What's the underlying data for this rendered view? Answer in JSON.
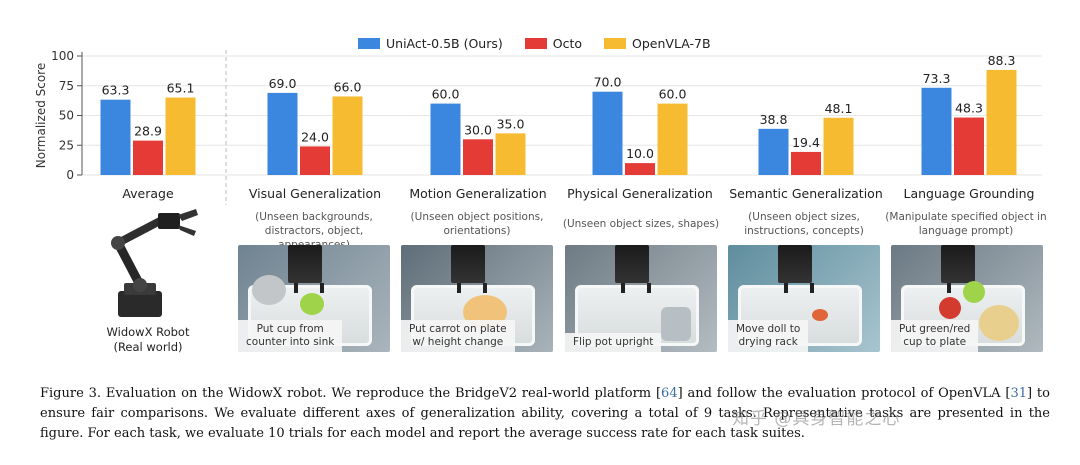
{
  "chart_data": {
    "type": "bar",
    "ylabel": "Normalized Score",
    "ylim": [
      0,
      100
    ],
    "yticks": [
      0,
      25,
      50,
      75,
      100
    ],
    "grid": true,
    "legend": "top-center",
    "categories": [
      "Average",
      "Visual Generalization",
      "Motion Generalization",
      "Physical Generalization",
      "Semantic Generalization",
      "Language Grounding"
    ],
    "series": [
      {
        "name": "UniAct-0.5B (Ours)",
        "color": "#3b87e0",
        "values": [
          63.3,
          69.0,
          60.0,
          70.0,
          38.8,
          73.3
        ]
      },
      {
        "name": "Octo",
        "color": "#e53b36",
        "values": [
          28.9,
          24.0,
          30.0,
          10.0,
          19.4,
          48.3
        ]
      },
      {
        "name": "OpenVLA-7B",
        "color": "#f7bb31",
        "values": [
          65.1,
          66.0,
          35.0,
          60.0,
          48.1,
          88.3
        ]
      }
    ],
    "subtitles": [
      "",
      "(Unseen backgrounds, distractors, object, appearances)",
      "(Unseen object positions, orientations)",
      "(Unseen object sizes,  shapes)",
      "(Unseen object sizes, instructions, concepts)",
      "(Manipulate specified object in language prompt)"
    ]
  },
  "robot": {
    "caption": "WidowX Robot\n(Real world)"
  },
  "tasks": [
    {
      "label": "Put cup from\ncounter into sink",
      "tone": "#8a9aa6",
      "obj_color": "#9fd34a"
    },
    {
      "label": "Put carrot on plate\nw/ height change",
      "tone": "#7f8d96",
      "obj_color": "#f0c27a"
    },
    {
      "label": "Flip pot upright",
      "tone": "#8e9aa2",
      "obj_color": "#b8bfc4"
    },
    {
      "label": "Move doll to\ndrying rack",
      "tone": "#7ea2b0",
      "obj_color": "#e0663a"
    },
    {
      "label": "Put green/red\ncup to plate",
      "tone": "#8896a0",
      "obj_color": "#d23b2e"
    }
  ],
  "caption": {
    "prefix": "Figure 3. Evaluation on the WidowX robot. We reproduce the BridgeV2 real-world platform [",
    "ref1": "64",
    "mid1": "] and follow the evaluation protocol of OpenVLA [",
    "ref2": "31",
    "suffix": "] to ensure fair comparisons. We evaluate different axes of generalization ability, covering a total of 9 tasks. Representative tasks are presented in the figure. For each task, we evaluate 10 trials for each model and report the average success rate for each task suites."
  },
  "watermark": "知乎 @具身智能之心"
}
